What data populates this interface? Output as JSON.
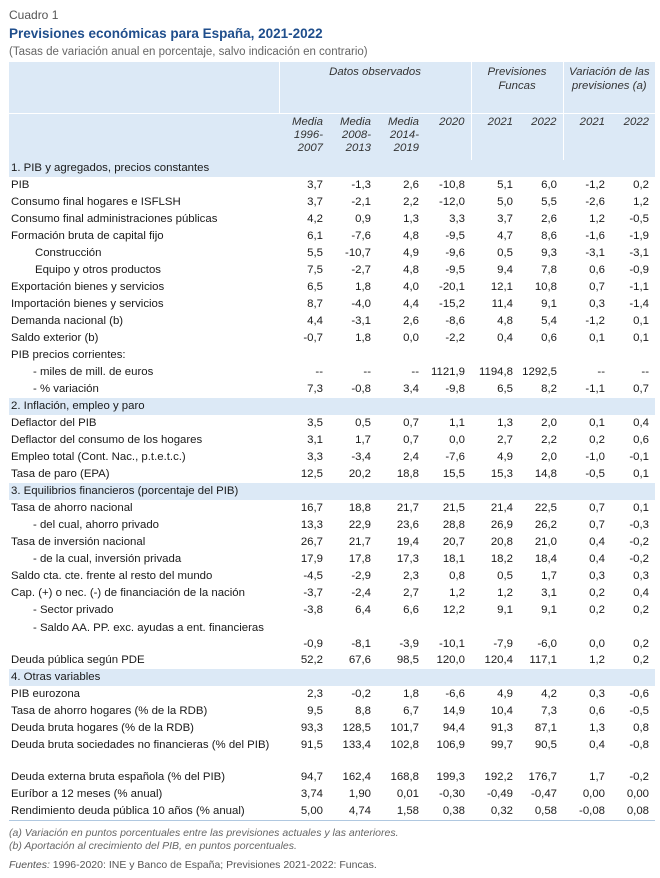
{
  "cuadro": "Cuadro 1",
  "title": "Previsiones económicas para España, 2021-2022",
  "subtitle": "(Tasas de variación anual en porcentaje, salvo indicación en contrario)",
  "groups": {
    "observed": "Datos observados",
    "funcas": "Previsiones Funcas",
    "variation": "Variación de las previsiones (a)"
  },
  "columns": [
    "Media 1996-2007",
    "Media 2008-2013",
    "Media 2014-2019",
    "2020",
    "2021",
    "2022",
    "2021",
    "2022"
  ],
  "sections": [
    {
      "title": "1. PIB y agregados, precios constantes",
      "rows": [
        {
          "label": "PIB",
          "values": [
            "3,7",
            "-1,3",
            "2,6",
            "-10,8",
            "5,1",
            "6,0",
            "-1,2",
            "0,2"
          ]
        },
        {
          "label": "Consumo final hogares e ISFLSH",
          "values": [
            "3,7",
            "-2,1",
            "2,2",
            "-12,0",
            "5,0",
            "5,5",
            "-2,6",
            "1,2"
          ]
        },
        {
          "label": "Consumo final administraciones públicas",
          "values": [
            "4,2",
            "0,9",
            "1,3",
            "3,3",
            "3,7",
            "2,6",
            "1,2",
            "-0,5"
          ]
        },
        {
          "label": "Formación bruta de capital fijo",
          "values": [
            "6,1",
            "-7,6",
            "4,8",
            "-9,5",
            "4,7",
            "8,6",
            "-1,6",
            "-1,9"
          ]
        },
        {
          "label": "Construcción",
          "indent": 1,
          "values": [
            "5,5",
            "-10,7",
            "4,9",
            "-9,6",
            "0,5",
            "9,3",
            "-3,1",
            "-3,1"
          ]
        },
        {
          "label": "Equipo y otros productos",
          "indent": 1,
          "values": [
            "7,5",
            "-2,7",
            "4,8",
            "-9,5",
            "9,4",
            "7,8",
            "0,6",
            "-0,9"
          ]
        },
        {
          "label": "Exportación bienes y servicios",
          "values": [
            "6,5",
            "1,8",
            "4,0",
            "-20,1",
            "12,1",
            "10,8",
            "0,7",
            "-1,1"
          ]
        },
        {
          "label": "Importación bienes y servicios",
          "values": [
            "8,7",
            "-4,0",
            "4,4",
            "-15,2",
            "11,4",
            "9,1",
            "0,3",
            "-1,4"
          ]
        },
        {
          "label": "Demanda nacional (b)",
          "values": [
            "4,4",
            "-3,1",
            "2,6",
            "-8,6",
            "4,8",
            "5,4",
            "-1,2",
            "0,1"
          ]
        },
        {
          "label": "Saldo exterior (b)",
          "values": [
            "-0,7",
            "1,8",
            "0,0",
            "-2,2",
            "0,4",
            "0,6",
            "0,1",
            "0,1"
          ]
        },
        {
          "label": "PIB precios corrientes:",
          "values": [
            "",
            "",
            "",
            "",
            "",
            "",
            "",
            ""
          ]
        },
        {
          "label": "- miles de mill. de euros",
          "indent": 2,
          "values": [
            "--",
            "--",
            "--",
            "1121,9",
            "1194,8",
            "1292,5",
            "--",
            "--"
          ]
        },
        {
          "label": "- % variación",
          "indent": 2,
          "values": [
            "7,3",
            "-0,8",
            "3,4",
            "-9,8",
            "6,5",
            "8,2",
            "-1,1",
            "0,7"
          ]
        }
      ]
    },
    {
      "title": "2. Inflación, empleo y paro",
      "rows": [
        {
          "label": "Deflactor del PIB",
          "values": [
            "3,5",
            "0,5",
            "0,7",
            "1,1",
            "1,3",
            "2,0",
            "0,1",
            "0,4"
          ]
        },
        {
          "label": "Deflactor del consumo de los hogares",
          "values": [
            "3,1",
            "1,7",
            "0,7",
            "0,0",
            "2,7",
            "2,2",
            "0,2",
            "0,6"
          ]
        },
        {
          "label": "Empleo total (Cont. Nac., p.t.e.t.c.)",
          "values": [
            "3,3",
            "-3,4",
            "2,4",
            "-7,6",
            "4,9",
            "2,0",
            "-1,0",
            "-0,1"
          ]
        },
        {
          "label": "Tasa de paro (EPA)",
          "values": [
            "12,5",
            "20,2",
            "18,8",
            "15,5",
            "15,3",
            "14,8",
            "-0,5",
            "0,1"
          ]
        }
      ]
    },
    {
      "title": "3. Equilibrios financieros (porcentaje del PIB)",
      "rows": [
        {
          "label": "Tasa de ahorro nacional",
          "values": [
            "16,7",
            "18,8",
            "21,7",
            "21,5",
            "21,4",
            "22,5",
            "0,7",
            "0,1"
          ]
        },
        {
          "label": "- del cual, ahorro privado",
          "indent": 2,
          "values": [
            "13,3",
            "22,9",
            "23,6",
            "28,8",
            "26,9",
            "26,2",
            "0,7",
            "-0,3"
          ]
        },
        {
          "label": "Tasa de inversión nacional",
          "values": [
            "26,7",
            "21,7",
            "19,4",
            "20,7",
            "20,8",
            "21,0",
            "0,4",
            "-0,2"
          ]
        },
        {
          "label": "- de la cual, inversión privada",
          "indent": 2,
          "values": [
            "17,9",
            "17,8",
            "17,3",
            "18,1",
            "18,2",
            "18,4",
            "0,4",
            "-0,2"
          ]
        },
        {
          "label": "Saldo cta. cte. frente al resto del mundo",
          "values": [
            "-4,5",
            "-2,9",
            "2,3",
            "0,8",
            "0,5",
            "1,7",
            "0,3",
            "0,3"
          ]
        },
        {
          "label": "Cap. (+) o nec. (-) de financiación de la nación",
          "values": [
            "-3,7",
            "-2,4",
            "2,7",
            "1,2",
            "1,2",
            "3,1",
            "0,2",
            "0,4"
          ]
        },
        {
          "label": "- Sector privado",
          "indent": 2,
          "values": [
            "-3,8",
            "6,4",
            "6,6",
            "12,2",
            "9,1",
            "9,1",
            "0,2",
            "0,2"
          ]
        },
        {
          "label": "- Saldo AA. PP. exc. ayudas a ent. financieras",
          "indent": 2,
          "tall": true,
          "values": [
            "-0,9",
            "-8,1",
            "-3,9",
            "-10,1",
            "-7,9",
            "-6,0",
            "0,0",
            "0,2"
          ]
        },
        {
          "label": "Deuda pública según PDE",
          "values": [
            "52,2",
            "67,6",
            "98,5",
            "120,0",
            "120,4",
            "117,1",
            "1,2",
            "0,2"
          ]
        }
      ]
    },
    {
      "title": "4. Otras variables",
      "rows": [
        {
          "label": "PIB eurozona",
          "values": [
            "2,3",
            "-0,2",
            "1,8",
            "-6,6",
            "4,9",
            "4,2",
            "0,3",
            "-0,6"
          ]
        },
        {
          "label": "Tasa de ahorro hogares (% de la RDB)",
          "values": [
            "9,5",
            "8,8",
            "6,7",
            "14,9",
            "10,4",
            "7,3",
            "0,6",
            "-0,5"
          ]
        },
        {
          "label": "Deuda bruta hogares (% de la RDB)",
          "values": [
            "93,3",
            "128,5",
            "101,7",
            "94,4",
            "91,3",
            "87,1",
            "1,3",
            "0,8"
          ]
        },
        {
          "label": "Deuda bruta sociedades no financieras (% del PIB)",
          "tallb": true,
          "values": [
            "91,5",
            "133,4",
            "102,8",
            "106,9",
            "99,7",
            "90,5",
            "0,4",
            "-0,8"
          ]
        },
        {
          "label": "Deuda externa bruta española (% del PIB)",
          "values": [
            "94,7",
            "162,4",
            "168,8",
            "199,3",
            "192,2",
            "176,7",
            "1,7",
            "-0,2"
          ]
        },
        {
          "label": "Euríbor a 12 meses (% anual)",
          "values": [
            "3,74",
            "1,90",
            "0,01",
            "-0,30",
            "-0,49",
            "-0,47",
            "0,00",
            "0,00"
          ]
        },
        {
          "label": "Rendimiento deuda pública 10 años (% anual)",
          "values": [
            "5,00",
            "4,74",
            "1,58",
            "0,38",
            "0,32",
            "0,58",
            "-0,08",
            "0,08"
          ]
        }
      ]
    }
  ],
  "notes": [
    "(a) Variación en puntos porcentuales entre las previsiones actuales y las anteriores.",
    "(b) Aportación al crecimiento del PIB, en puntos porcentuales."
  ],
  "source_label": "Fuentes:",
  "source_text": " 1996-2020: INE y Banco de España; Previsiones 2021-2022: Funcas."
}
